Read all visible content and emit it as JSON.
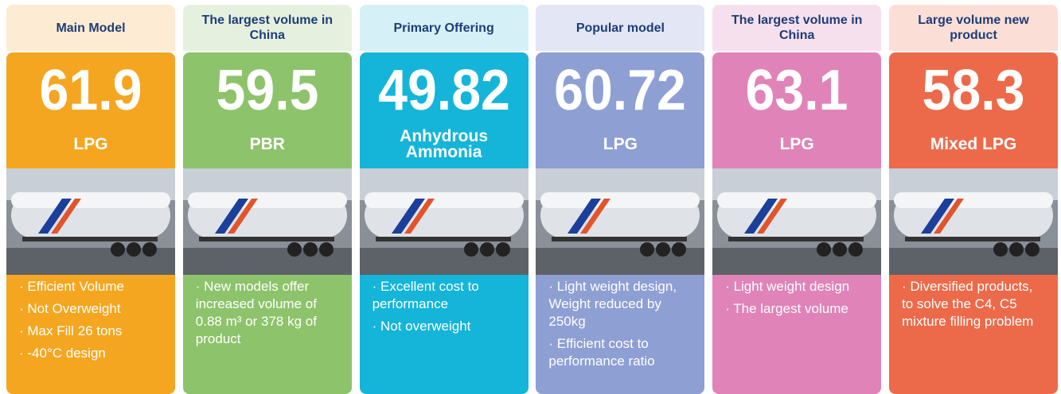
{
  "cards": [
    {
      "header": "Main Model",
      "number": "61.9",
      "product": "LPG",
      "bullets": [
        "· Efficient Volume",
        "· Not Overweight",
        "· Max Fill 26 tons",
        "· -40°C design"
      ],
      "color": "#f5a620",
      "header_color": "#fdecd3"
    },
    {
      "header": "The largest volume in China",
      "number": "59.5",
      "product": "PBR",
      "bullets": [
        "· New models offer increased volume of 0.88 m³ or 378 kg of product"
      ],
      "color": "#8dc36b",
      "header_color": "#e5f1de"
    },
    {
      "header": "Primary Offering",
      "number": "49.82",
      "product": "Anhydrous Ammonia",
      "bullets": [
        "· Excellent cost to performance",
        "· Not overweight"
      ],
      "color": "#14b5d9",
      "header_color": "#d6f0f7"
    },
    {
      "header": "Popular model",
      "number": "60.72",
      "product": "LPG",
      "bullets": [
        "· Light weight design, Weight reduced by 250kg",
        "· Efficient cost to performance ratio"
      ],
      "color": "#8e9fd4",
      "header_color": "#e3e6f4"
    },
    {
      "header": "The largest volume in China",
      "number": "63.1",
      "product": "LPG",
      "bullets": [
        "· Light weight design",
        "· The largest volume"
      ],
      "color": "#e083b8",
      "header_color": "#f7e0ed"
    },
    {
      "header": "Large volume new product",
      "number": "58.3",
      "product": "Mixed LPG",
      "bullets": [
        "· Diversified products, to solve the C4, C5 mixture filling problem"
      ],
      "color": "#ec6a4a",
      "header_color": "#fbdfd7"
    }
  ]
}
